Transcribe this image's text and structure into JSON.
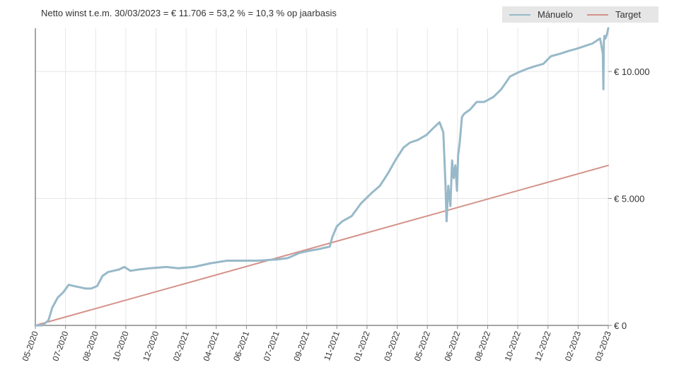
{
  "title": "Netto winst t.e.m. 30/03/2023 = € 11.706 = 53,2 % = 10,3 % op jaarbasis",
  "legend": [
    {
      "name": "Mánuelo",
      "color": "#98b9c9"
    },
    {
      "name": "Target",
      "color": "#d4928a"
    }
  ],
  "chart_data": {
    "type": "line",
    "title": "Netto winst t.e.m. 30/03/2023 = € 11.706 = 53,2 % = 10,3 % op jaarbasis",
    "xlabel": "",
    "ylabel": "",
    "x_tick_labels": [
      "05-2020",
      "07-2020",
      "08-2020",
      "10-2020",
      "12-2020",
      "02-2021",
      "04-2021",
      "06-2021",
      "07-2021",
      "09-2021",
      "11-2021",
      "01-2022",
      "03-2022",
      "05-2022",
      "06-2022",
      "08-2022",
      "10-2022",
      "12-2022",
      "02-2023",
      "03-2023"
    ],
    "y_tick_labels": [
      "€ 0",
      "€ 5.000",
      "€ 10.000"
    ],
    "y_ticks": [
      0,
      5000,
      10000
    ],
    "ylim": [
      0,
      11700
    ],
    "x_range": [
      "2020-05-15",
      "2023-03-30"
    ],
    "grid": true,
    "legend_position": "top-right",
    "series": [
      {
        "name": "Mánuelo",
        "color": "#98b9c9",
        "x": [
          "2020-05-15",
          "2020-05-28",
          "2020-06-08",
          "2020-06-15",
          "2020-06-25",
          "2020-07-05",
          "2020-07-15",
          "2020-07-25",
          "2020-08-05",
          "2020-08-15",
          "2020-08-25",
          "2020-09-05",
          "2020-09-15",
          "2020-09-25",
          "2020-10-05",
          "2020-10-15",
          "2020-10-25",
          "2020-11-05",
          "2020-11-20",
          "2020-12-10",
          "2021-01-10",
          "2021-02-01",
          "2021-03-01",
          "2021-04-01",
          "2021-05-01",
          "2021-06-01",
          "2021-06-26",
          "2021-08-01",
          "2021-08-20",
          "2021-09-10",
          "2021-09-20",
          "2021-10-01",
          "2021-10-15",
          "2021-10-25",
          "2021-11-05",
          "2021-11-10",
          "2021-11-18",
          "2021-11-28",
          "2021-12-15",
          "2022-01-01",
          "2022-01-20",
          "2022-02-05",
          "2022-02-20",
          "2022-03-05",
          "2022-03-20",
          "2022-04-01",
          "2022-04-15",
          "2022-05-01",
          "2022-05-15",
          "2022-05-25",
          "2022-06-01",
          "2022-06-05",
          "2022-06-07",
          "2022-06-10",
          "2022-06-14",
          "2022-06-17",
          "2022-06-20",
          "2022-06-23",
          "2022-06-26",
          "2022-06-28",
          "2022-07-01",
          "2022-07-05",
          "2022-07-08",
          "2022-07-10",
          "2022-07-20",
          "2022-08-01",
          "2022-08-15",
          "2022-09-01",
          "2022-09-15",
          "2022-10-01",
          "2022-10-15",
          "2022-11-01",
          "2022-11-15",
          "2022-12-01",
          "2022-12-15",
          "2023-01-01",
          "2023-01-15",
          "2023-02-01",
          "2023-02-15",
          "2023-03-01",
          "2023-03-15",
          "2023-03-20",
          "2023-03-21",
          "2023-03-22",
          "2023-03-23",
          "2023-03-25",
          "2023-03-28",
          "2023-03-30"
        ],
        "y": [
          0,
          0,
          200,
          700,
          1100,
          1300,
          1600,
          1550,
          1500,
          1450,
          1450,
          1550,
          1950,
          2100,
          2150,
          2200,
          2300,
          2150,
          2200,
          2250,
          2300,
          2250,
          2300,
          2450,
          2550,
          2550,
          2550,
          2600,
          2650,
          2850,
          2900,
          2950,
          3000,
          3050,
          3100,
          3500,
          3900,
          4100,
          4300,
          4800,
          5200,
          5500,
          6000,
          6500,
          7000,
          7200,
          7300,
          7500,
          7800,
          8000,
          7600,
          5500,
          4100,
          5500,
          4700,
          6500,
          5800,
          6300,
          5300,
          6700,
          7200,
          8200,
          8300,
          8350,
          8500,
          8800,
          8800,
          9000,
          9300,
          9800,
          9950,
          10100,
          10200,
          10300,
          10600,
          10700,
          10800,
          10900,
          11000,
          11100,
          11300,
          10700,
          9300,
          11200,
          11400,
          11300,
          11500,
          11706
        ]
      },
      {
        "name": "Target",
        "color": "#d4928a",
        "x": [
          "2020-05-15",
          "2023-03-30"
        ],
        "y": [
          0,
          6300
        ]
      }
    ]
  }
}
